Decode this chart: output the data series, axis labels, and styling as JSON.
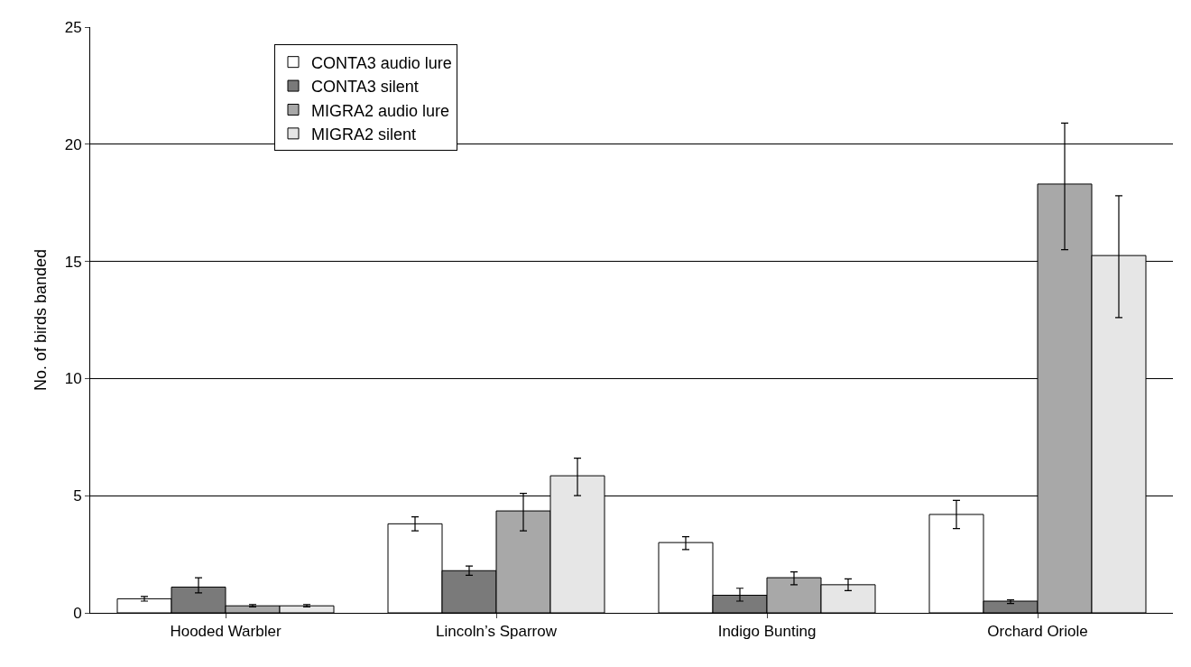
{
  "chart_data": {
    "type": "bar",
    "ylabel": "No. of birds banded",
    "categories": [
      "Hooded Warbler",
      "Lincoln’s Sparrow",
      "Indigo Bunting",
      "Orchard Oriole"
    ],
    "series": [
      {
        "name": "CONTA3 audio lure",
        "color": "#ffffff",
        "values": [
          0.6,
          3.8,
          3.0,
          4.2
        ],
        "errors": [
          [
            0.5,
            0.7
          ],
          [
            3.5,
            4.1
          ],
          [
            2.7,
            3.25
          ],
          [
            3.6,
            4.8
          ]
        ]
      },
      {
        "name": "CONTA3 silent",
        "color": "#7a7a7a",
        "values": [
          1.1,
          1.8,
          0.75,
          0.5
        ],
        "errors": [
          [
            0.85,
            1.5
          ],
          [
            1.6,
            2.0
          ],
          [
            0.5,
            1.05
          ],
          [
            0.4,
            0.55
          ]
        ]
      },
      {
        "name": "MIGRA2 audio lure",
        "color": "#a8a8a8",
        "values": [
          0.3,
          4.35,
          1.5,
          18.3
        ],
        "errors": [
          [
            0.25,
            0.35
          ],
          [
            3.5,
            5.1
          ],
          [
            1.2,
            1.75
          ],
          [
            15.5,
            20.9
          ]
        ]
      },
      {
        "name": "MIGRA2 silent",
        "color": "#e6e6e6",
        "values": [
          0.3,
          5.85,
          1.2,
          15.25
        ],
        "errors": [
          [
            0.25,
            0.35
          ],
          [
            5.0,
            6.6
          ],
          [
            0.95,
            1.45
          ],
          [
            12.6,
            17.8
          ]
        ]
      }
    ],
    "ylim": [
      0,
      25
    ],
    "yticks": [
      0,
      5,
      10,
      15,
      20,
      25
    ],
    "grid": "y",
    "legend": "top left"
  }
}
